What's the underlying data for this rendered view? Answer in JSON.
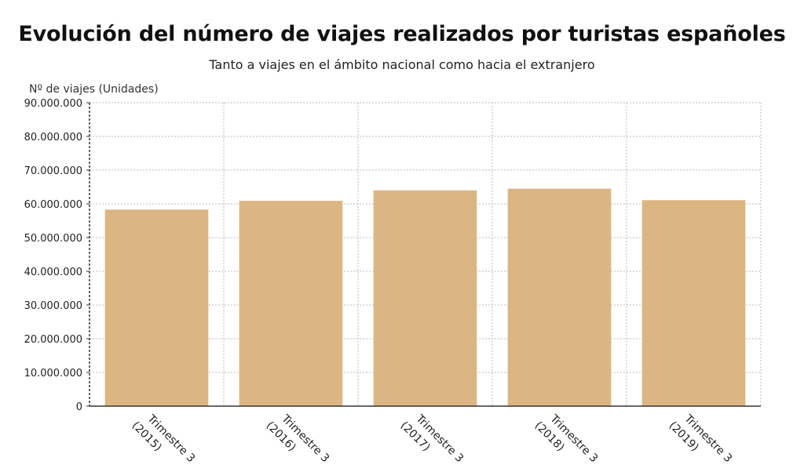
{
  "title": "Evolución del número de viajes realizados por turistas españoles",
  "subtitle": "Tanto a viajes en el ámbito nacional como hacia el extranjero",
  "colors": {
    "bar": "#dcb682",
    "grid": "#bbbbbb",
    "axis": "#333333"
  },
  "chart_data": {
    "type": "bar",
    "ylabel": "Nº de viajes (Unidades)",
    "xlabel": "",
    "ylim": [
      0,
      90000000
    ],
    "grid": true,
    "yticks": [
      {
        "value": 0,
        "label": "0"
      },
      {
        "value": 10000000,
        "label": "10.000.000"
      },
      {
        "value": 20000000,
        "label": "20.000.000"
      },
      {
        "value": 30000000,
        "label": "30.000.000"
      },
      {
        "value": 40000000,
        "label": "40.000.000"
      },
      {
        "value": 50000000,
        "label": "50.000.000"
      },
      {
        "value": 60000000,
        "label": "60.000.000"
      },
      {
        "value": 70000000,
        "label": "70.000.000"
      },
      {
        "value": 80000000,
        "label": "80.000.000"
      },
      {
        "value": 90000000,
        "label": "90.000.000"
      }
    ],
    "categories": [
      {
        "line1": "Trimestre 3",
        "line2": "(2015)"
      },
      {
        "line1": "Trimestre 3",
        "line2": "(2016)"
      },
      {
        "line1": "Trimestre 3",
        "line2": "(2017)"
      },
      {
        "line1": "Trimestre 3",
        "line2": "(2018)"
      },
      {
        "line1": "Trimestre 3",
        "line2": "(2019)"
      }
    ],
    "values": [
      58300000,
      60900000,
      64000000,
      64500000,
      61100000
    ]
  }
}
